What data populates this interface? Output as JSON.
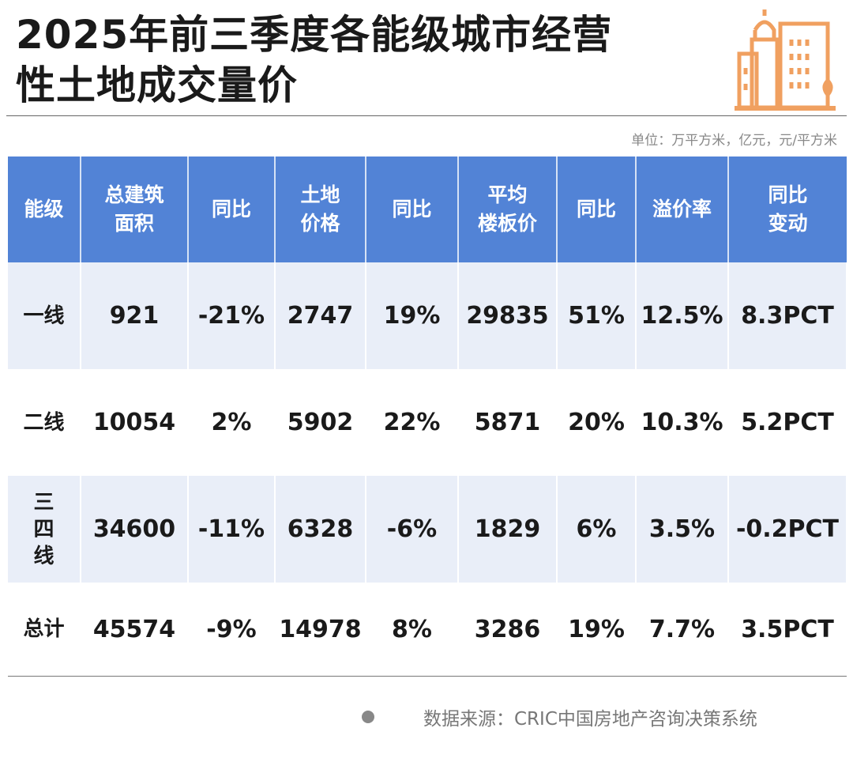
{
  "title_line1": "2025年前三季度各能级城市经营",
  "title_line2": "性土地成交量价",
  "unit": "单位：万平方米，亿元，元/平方米",
  "source": "数据来源：CRIC中国房地产咨询决策系统",
  "colors": {
    "header": "#5283d6",
    "row_alt": "#e9eef8",
    "logo": "#f0a060"
  },
  "logo_icon": "city-buildings-icon",
  "chart_data": {
    "type": "table",
    "columns": [
      "能级",
      "总建筑面积",
      "同比",
      "土地价格",
      "同比",
      "平均楼板价",
      "同比",
      "溢价率",
      "同比变动"
    ],
    "header_lines": [
      [
        "能级"
      ],
      [
        "总建筑",
        "面积"
      ],
      [
        "同比"
      ],
      [
        "土地",
        "价格"
      ],
      [
        "同比"
      ],
      [
        "平均",
        "楼板价"
      ],
      [
        "同比"
      ],
      [
        "溢价率"
      ],
      [
        "同比",
        "变动"
      ]
    ],
    "rows": [
      [
        "一线",
        "921",
        "-21%",
        "2747",
        "19%",
        "29835",
        "51%",
        "12.5%",
        "8.3PCT"
      ],
      [
        "二线",
        "10054",
        "2%",
        "5902",
        "22%",
        "5871",
        "20%",
        "10.3%",
        "5.2PCT"
      ],
      [
        "三四线",
        "34600",
        "-11%",
        "6328",
        "-6%",
        "1829",
        "6%",
        "3.5%",
        "-0.2PCT"
      ],
      [
        "总计",
        "45574",
        "-9%",
        "14978",
        "8%",
        "3286",
        "19%",
        "7.7%",
        "3.5PCT"
      ]
    ]
  }
}
